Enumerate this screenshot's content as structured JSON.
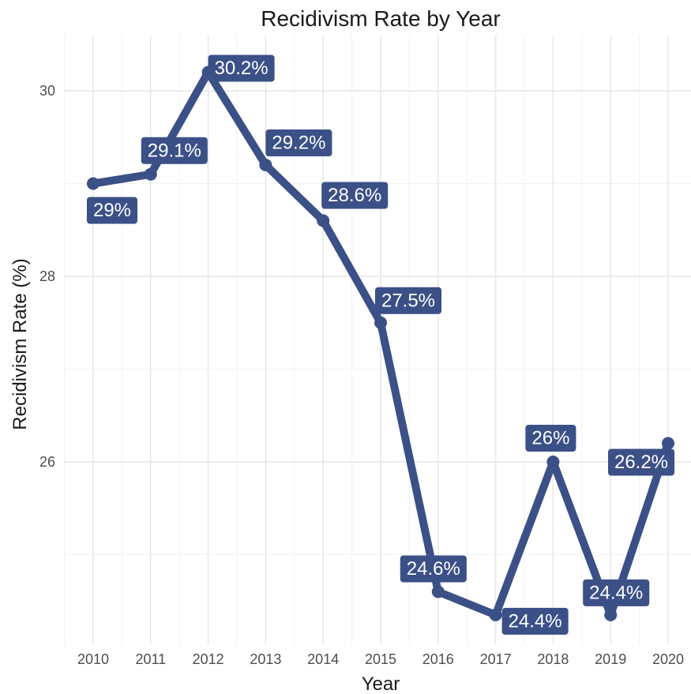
{
  "chart_data": {
    "type": "line",
    "title": "Recidivism Rate by Year",
    "xlabel": "Year",
    "ylabel": "Recidivism Rate (%)",
    "x": [
      2010,
      2011,
      2012,
      2013,
      2014,
      2015,
      2016,
      2017,
      2018,
      2019,
      2020
    ],
    "x_tick_labels": [
      "2010",
      "2011",
      "2012",
      "2013",
      "2014",
      "2015",
      "2016",
      "2017",
      "2018",
      "2019",
      "2020"
    ],
    "y_ticks": [
      26,
      28,
      30
    ],
    "y_tick_labels": [
      "26",
      "28",
      "30"
    ],
    "series": [
      {
        "values": [
          29.0,
          29.1,
          30.2,
          29.2,
          28.6,
          27.5,
          24.6,
          24.35,
          26.0,
          24.35,
          26.2
        ],
        "labels": [
          "29%",
          "29.1%",
          "30.2%",
          "29.2%",
          "28.6%",
          "27.5%",
          "24.6%",
          "24.4%",
          "26%",
          "24.4%",
          "26.2%"
        ],
        "color": "#3b5087"
      }
    ],
    "ylim": [
      24.1,
      30.5
    ],
    "grid": true,
    "legend": "none"
  }
}
